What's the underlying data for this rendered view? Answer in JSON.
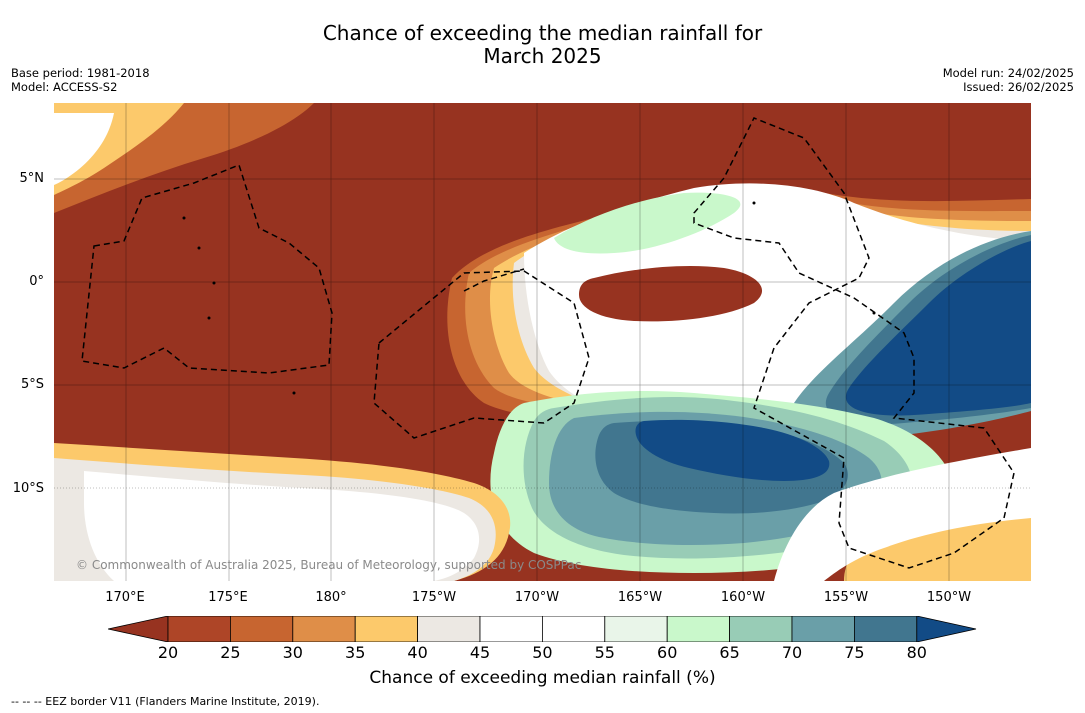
{
  "title": {
    "line1": "Chance of exceeding the median rainfall for",
    "line2": "March 2025"
  },
  "meta": {
    "base_period": "Base period: 1981-2018",
    "model": "Model: ACCESS-S2",
    "model_run": "Model run: 24/02/2025",
    "issued": "Issued: 26/02/2025"
  },
  "map": {
    "copyright": "© Commonwealth of Australia 2025, Bureau of Meteorology, supported by COSPPac",
    "lon_labels": [
      "170°E",
      "175°E",
      "180°",
      "175°W",
      "170°W",
      "165°W",
      "160°W",
      "155°W",
      "150°W"
    ],
    "lat_labels": [
      "5°N",
      "0°",
      "5°S",
      "10°S"
    ]
  },
  "colorbar": {
    "ticks": [
      "20",
      "25",
      "30",
      "35",
      "40",
      "45",
      "50",
      "55",
      "60",
      "65",
      "70",
      "75",
      "80"
    ],
    "colors": {
      "below20": "#973320",
      "c20_25": "#ae4527",
      "c25_30": "#c76530",
      "c30_35": "#df8e48",
      "c35_40": "#fcc96b",
      "c40_45": "#ece8e3",
      "c45_50": "#ffffff",
      "c50_55": "#ffffff",
      "c55_60": "#e9f5e9",
      "c60_65": "#c9f8cb",
      "c65_70": "#98ccb6",
      "c70_75": "#6a9fa8",
      "c75_80": "#41768f",
      "above80": "#124b86"
    },
    "label": "Chance of exceeding median rainfall (%)"
  },
  "legend": {
    "eez_note": "--  --  -- EEZ border V11 (Flanders Marine Institute, 2019)."
  }
}
